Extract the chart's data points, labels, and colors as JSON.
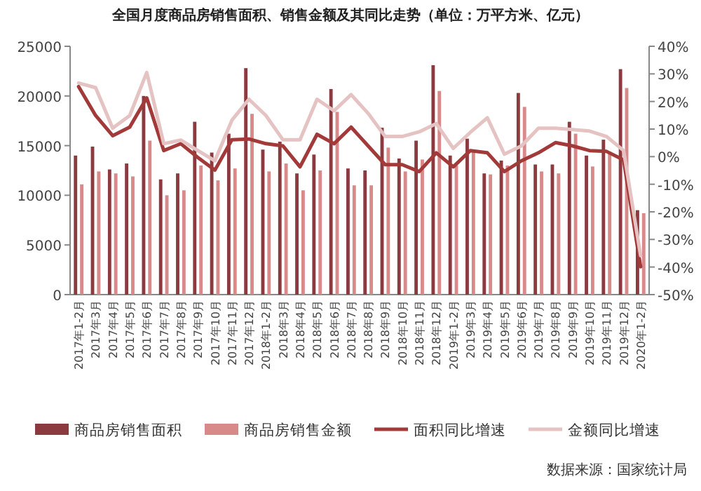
{
  "chart_data": {
    "type": "bar",
    "title": "全国月度商品房销售面积、销售金额及其同比走势（单位：万平方米、亿元）",
    "categories": [
      "2017年1-2月",
      "2017年3月",
      "2017年4月",
      "2017年5月",
      "2017年6月",
      "2017年7月",
      "2017年8月",
      "2017年9月",
      "2017年10月",
      "2017年11月",
      "2017年12月",
      "2018年1-2月",
      "2018年3月",
      "2018年4月",
      "2018年5月",
      "2018年6月",
      "2018年7月",
      "2018年8月",
      "2018年9月",
      "2018年10月",
      "2018年11月",
      "2018年12月",
      "2019年1-2月",
      "2019年3月",
      "2019年4月",
      "2019年5月",
      "2019年6月",
      "2019年7月",
      "2019年8月",
      "2019年9月",
      "2019年10月",
      "2019年11月",
      "2019年12月",
      "2020年1-2月"
    ],
    "series": [
      {
        "name": "商品房销售面积",
        "color": "#8b3a3f",
        "values": [
          14000,
          14900,
          12600,
          13200,
          20000,
          11600,
          12200,
          17400,
          14300,
          16200,
          22800,
          14600,
          15400,
          12200,
          14100,
          20700,
          12700,
          12500,
          16800,
          13700,
          15500,
          23100,
          14000,
          15700,
          12200,
          13500,
          20300,
          13100,
          13100,
          17400,
          14000,
          15600,
          22700,
          8500
        ]
      },
      {
        "name": "商品房销售金额",
        "color": "#d88a8a",
        "values": [
          11100,
          12400,
          12200,
          11900,
          15500,
          10000,
          10500,
          13000,
          11500,
          12700,
          18200,
          12400,
          13200,
          10500,
          12500,
          18400,
          11000,
          11000,
          14800,
          12400,
          13600,
          20500,
          13000,
          14600,
          12100,
          13000,
          18900,
          12400,
          12200,
          16200,
          12900,
          14400,
          20800,
          8200
        ]
      },
      {
        "name": "面积同比增速",
        "type": "line",
        "axis": "y2",
        "color": "#a33a3a",
        "values": [
          25.4,
          14.9,
          7.6,
          10.7,
          21.3,
          2.2,
          4.7,
          -0.3,
          -4.9,
          6.1,
          6.4,
          4.7,
          3.9,
          -3.7,
          8.1,
          4.7,
          10.7,
          3.9,
          -2.9,
          -2.9,
          -5.4,
          1.4,
          -3.7,
          2.2,
          1.4,
          -5.4,
          -1.5,
          1.4,
          5.1,
          3.9,
          2.2,
          1.9,
          -1.2,
          -39.9
        ]
      },
      {
        "name": "金额同比增速",
        "type": "line",
        "axis": "y2",
        "color": "#e6c3c3",
        "values": [
          26.7,
          25.0,
          10.3,
          14.9,
          30.5,
          4.7,
          6.0,
          2.2,
          -1.5,
          13.2,
          20.8,
          14.9,
          6.1,
          6.1,
          20.8,
          16.6,
          22.5,
          15.7,
          7.3,
          7.3,
          9.0,
          12.0,
          3.0,
          8.8,
          14.1,
          0.9,
          3.9,
          10.3,
          10.3,
          9.8,
          9.3,
          7.3,
          2.2,
          -35.9
        ]
      }
    ],
    "ylim": [
      0,
      25000
    ],
    "yticks": [
      0,
      5000,
      10000,
      15000,
      20000,
      25000
    ],
    "y2lim": [
      -50,
      40
    ],
    "y2ticks": [
      {
        "value": -50,
        "label": "-50%"
      },
      {
        "value": -40,
        "label": "-40%"
      },
      {
        "value": -30,
        "label": "-30%"
      },
      {
        "value": -20,
        "label": "-20%"
      },
      {
        "value": -10,
        "label": "-10%"
      },
      {
        "value": 0,
        "label": "0%"
      },
      {
        "value": 10,
        "label": "10%"
      },
      {
        "value": 20,
        "label": "20%"
      },
      {
        "value": 30,
        "label": "30%"
      },
      {
        "value": 40,
        "label": "40%"
      }
    ],
    "legend": "bottom",
    "annotations": [
      "数据来源：国家统计局"
    ]
  }
}
